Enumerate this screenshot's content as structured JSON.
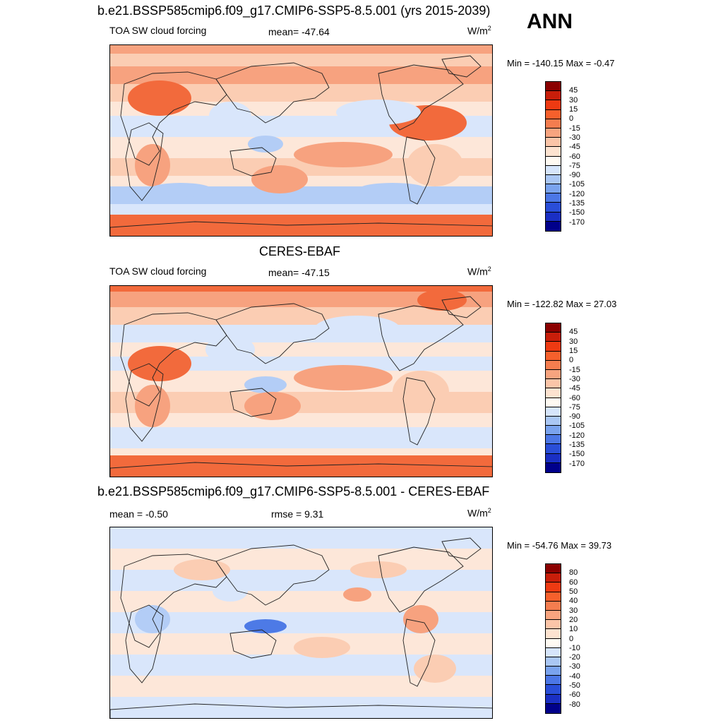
{
  "header": {
    "title_model": "b.e21.BSSP585cmip6.f09_g17.CMIP6-SSP5-8.5.001 (yrs 2015-2039)",
    "season": "ANN"
  },
  "panels": [
    {
      "left_label": "TOA SW cloud forcing",
      "center_label": "mean= -47.64",
      "units_base": "W/m",
      "units_sup": "2",
      "minmax": "Min = -140.15 Max =  -0.47",
      "colorbar_levels": [
        "45",
        "30",
        "15",
        "0",
        "-15",
        "-30",
        "-45",
        "-60",
        "-75",
        "-90",
        "-105",
        "-120",
        "-135",
        "-150",
        "-170"
      ],
      "colorbar_colors": [
        "#8b0000",
        "#c81e0a",
        "#ee3a12",
        "#f6602c",
        "#f47d4f",
        "#f7a47f",
        "#fbc5a8",
        "#fde3d0",
        "#fffaf2",
        "#d6e5fb",
        "#aac7f4",
        "#7aa3ee",
        "#4c77e6",
        "#2a4ed8",
        "#1a2fc4",
        "#00008b"
      ]
    },
    {
      "panel_title": "CERES-EBAF",
      "left_label": "TOA SW cloud forcing",
      "center_label": "mean= -47.15",
      "units_base": "W/m",
      "units_sup": "2",
      "minmax": "Min = -122.82 Max =  27.03",
      "colorbar_levels": [
        "45",
        "30",
        "15",
        "0",
        "-15",
        "-30",
        "-45",
        "-60",
        "-75",
        "-90",
        "-105",
        "-120",
        "-135",
        "-150",
        "-170"
      ],
      "colorbar_colors": [
        "#8b0000",
        "#c81e0a",
        "#ee3a12",
        "#f6602c",
        "#f47d4f",
        "#f7a47f",
        "#fbc5a8",
        "#fde3d0",
        "#fffaf2",
        "#d6e5fb",
        "#aac7f4",
        "#7aa3ee",
        "#4c77e6",
        "#2a4ed8",
        "#1a2fc4",
        "#00008b"
      ]
    },
    {
      "panel_title": "b.e21.BSSP585cmip6.f09_g17.CMIP6-SSP5-8.5.001 - CERES-EBAF",
      "left_label": "mean =  -0.50",
      "center_label": "rmse =   9.31",
      "units_base": "W/m",
      "units_sup": "2",
      "minmax": "Min = -54.76 Max =  39.73",
      "colorbar_levels": [
        "80",
        "60",
        "50",
        "40",
        "30",
        "20",
        "10",
        "0",
        "-10",
        "-20",
        "-30",
        "-40",
        "-50",
        "-60",
        "-80"
      ],
      "colorbar_colors": [
        "#8b0000",
        "#c81e0a",
        "#ee3a12",
        "#f6602c",
        "#f47d4f",
        "#f7a47f",
        "#fbc5a8",
        "#fde3d0",
        "#fffaf2",
        "#d6e5fb",
        "#aac7f4",
        "#7aa3ee",
        "#4c77e6",
        "#2a4ed8",
        "#1a2fc4",
        "#00008b"
      ]
    }
  ],
  "map_colors": {
    "strong_pos": "#f26a3c",
    "pos": "#f7a27f",
    "weak_pos": "#fbcdb3",
    "neutral": "#fde7d9",
    "weak_neg": "#d9e6fb",
    "neg": "#b3cdf6",
    "strong_neg": "#4d7ae6",
    "coast": "#222222"
  }
}
